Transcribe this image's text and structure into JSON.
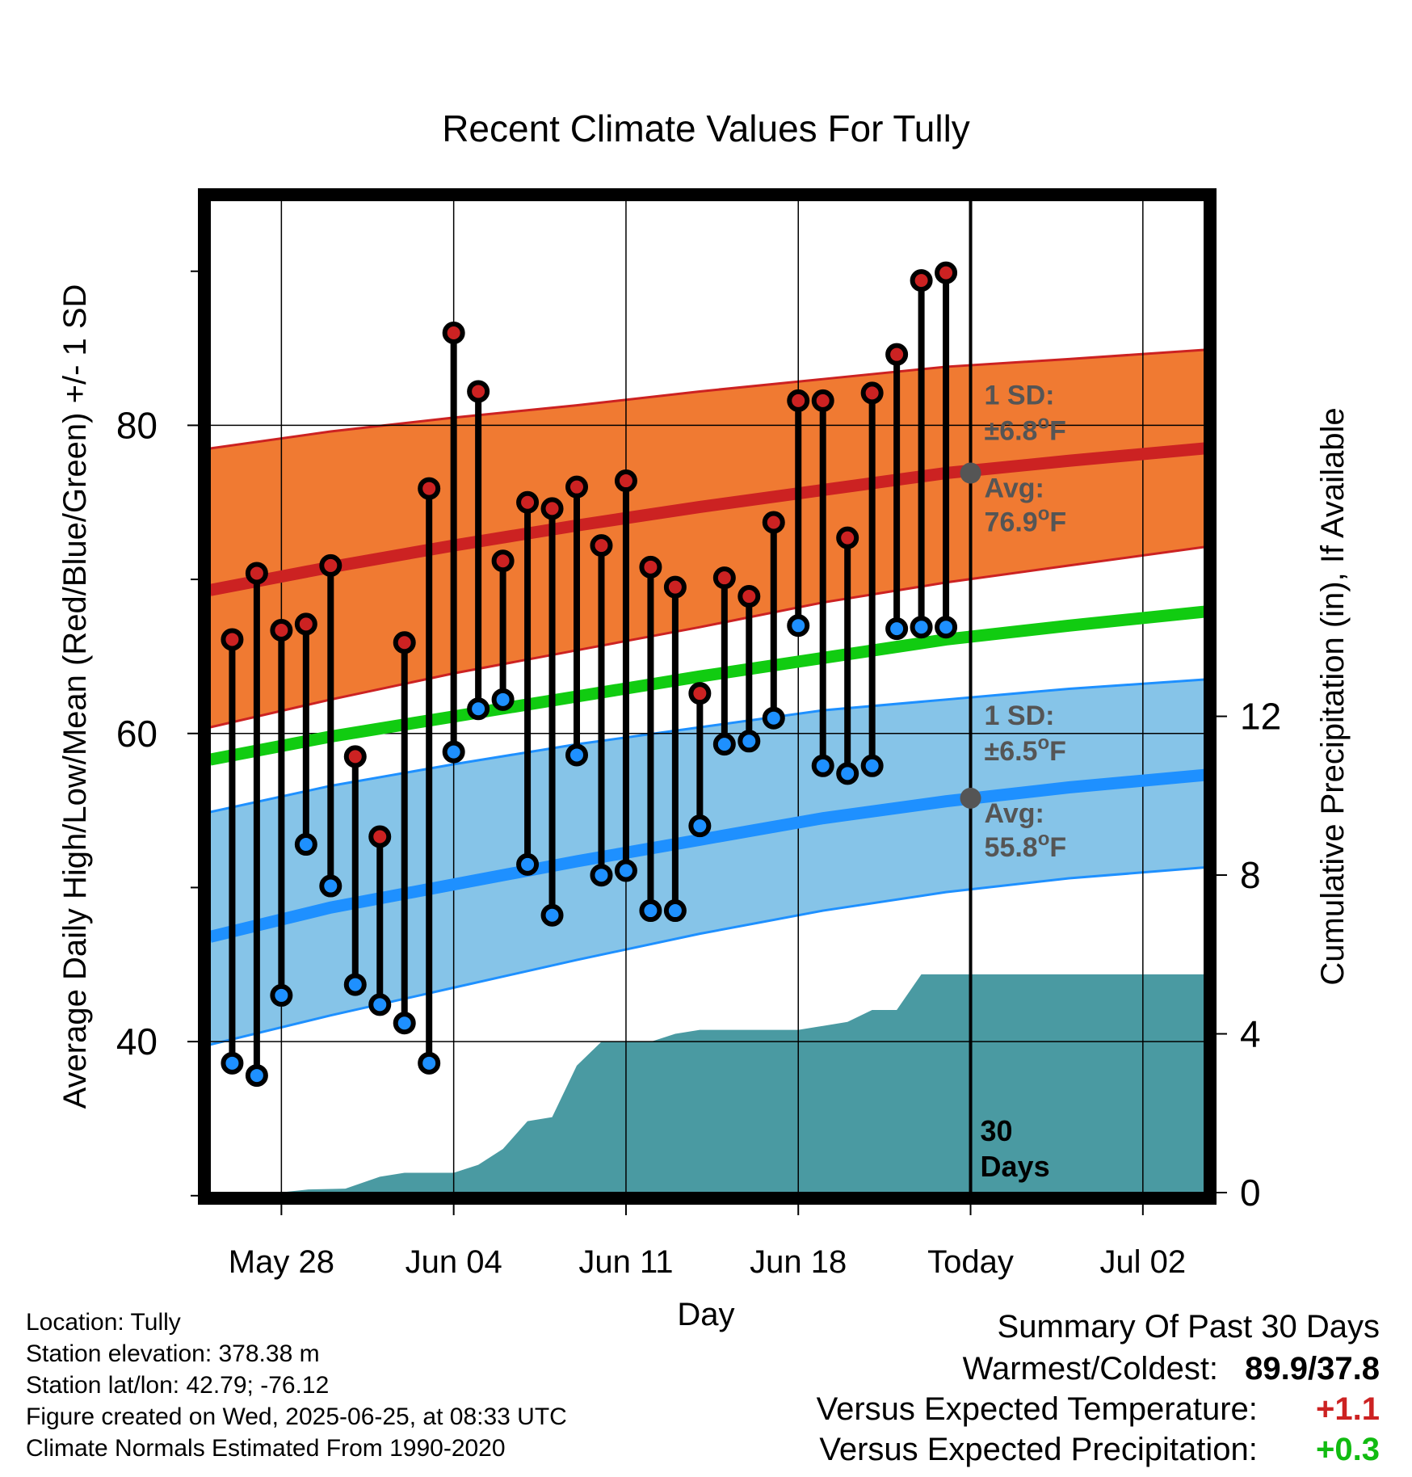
{
  "chart_data": {
    "type": "line",
    "title": "Recent Climate Values For Tully",
    "xlabel": "Day",
    "ylabel": "Average Daily High/Low/Mean (Red/Blue/Green) +/- 1 SD",
    "y2label": "Cumulative Precipitation (in), If Available",
    "x_range_days": [
      -29.9,
      10.5
    ],
    "x_ticks": [
      {
        "day": -27,
        "label": "May 28"
      },
      {
        "day": -20,
        "label": "Jun 04"
      },
      {
        "day": -13,
        "label": "Jun 11"
      },
      {
        "day": -6,
        "label": "Jun 18"
      },
      {
        "day": 1,
        "label": "Today"
      },
      {
        "day": 8,
        "label": "Jul 02"
      }
    ],
    "y_range": [
      30.2,
      94.6
    ],
    "y_ticks": [
      40,
      60,
      80
    ],
    "y_minor_ticks": [
      30,
      50,
      70,
      90
    ],
    "y2_range": [
      0,
      25
    ],
    "y2_ticks": [
      0,
      4,
      8,
      12
    ],
    "grid": true,
    "today_marker": {
      "day": 1,
      "label_line1": "30",
      "label_line2": "Days"
    },
    "normals": {
      "day": [
        -29.9,
        -25,
        -20,
        -15,
        -10,
        -5,
        0,
        5,
        10.5
      ],
      "high_avg": [
        69.3,
        70.8,
        72.2,
        73.5,
        74.7,
        75.8,
        76.9,
        77.7,
        78.5
      ],
      "high_upper": [
        78.5,
        79.6,
        80.5,
        81.3,
        82.2,
        83.0,
        83.8,
        84.3,
        84.9
      ],
      "high_lower": [
        60.4,
        62.2,
        63.9,
        65.4,
        66.9,
        68.5,
        69.8,
        70.9,
        72.1
      ],
      "mean_avg": [
        58.3,
        59.8,
        61.1,
        62.4,
        63.7,
        64.9,
        66.1,
        67.0,
        67.9
      ],
      "low_avg": [
        46.8,
        48.7,
        50.2,
        51.7,
        53.1,
        54.5,
        55.6,
        56.5,
        57.3
      ],
      "low_upper": [
        54.9,
        56.6,
        58.0,
        59.3,
        60.4,
        61.5,
        62.2,
        62.9,
        63.5
      ],
      "low_lower": [
        39.8,
        41.7,
        43.5,
        45.3,
        47.0,
        48.5,
        49.7,
        50.6,
        51.3
      ]
    },
    "daily_days": [
      -29,
      -28,
      -27,
      -26,
      -25,
      -24,
      -23,
      -22,
      -21,
      -20,
      -19,
      -18,
      -17,
      -16,
      -15,
      -14,
      -13,
      -12,
      -11,
      -10,
      -9,
      -8,
      -7,
      -6,
      -5,
      -4,
      -3,
      -2,
      -1,
      0
    ],
    "daily_high": [
      66.1,
      70.4,
      66.7,
      67.1,
      70.9,
      58.5,
      53.3,
      65.9,
      75.9,
      86.0,
      82.2,
      71.2,
      75.0,
      74.6,
      76.0,
      72.2,
      76.4,
      70.8,
      69.5,
      62.6,
      70.1,
      68.9,
      73.7,
      81.6,
      81.6,
      72.7,
      82.1,
      84.6,
      89.4,
      89.9
    ],
    "daily_low": [
      38.6,
      37.8,
      43.0,
      52.8,
      50.1,
      43.7,
      42.4,
      41.2,
      38.6,
      58.8,
      61.6,
      62.2,
      51.5,
      48.2,
      58.6,
      50.8,
      51.1,
      48.5,
      48.5,
      54.0,
      59.3,
      59.5,
      61.0,
      67.0,
      57.9,
      57.4,
      57.9,
      66.8,
      66.9,
      66.9
    ],
    "precip_days": [
      -29.9,
      -27.1,
      -25.9,
      -24.4,
      -23.0,
      -22.0,
      -21.0,
      -20.0,
      -19.0,
      -18.0,
      -17.0,
      -16.0,
      -15.0,
      -14.0,
      -13.0,
      -12.0,
      -11.0,
      -10.0,
      -9.0,
      -8.0,
      -7.0,
      -6.0,
      -5.0,
      -4.0,
      -3.0,
      -2.0,
      -1.0,
      10.5
    ],
    "precip_cum": [
      0,
      0,
      0.08,
      0.1,
      0.4,
      0.5,
      0.5,
      0.5,
      0.7,
      1.1,
      1.8,
      1.9,
      3.2,
      3.8,
      3.8,
      3.8,
      4.0,
      4.1,
      4.1,
      4.1,
      4.1,
      4.1,
      4.2,
      4.3,
      4.6,
      4.6,
      5.5,
      5.5
    ]
  },
  "annotations": {
    "high_sd_line1": "1 SD:",
    "high_sd_line2": "±6.8°F",
    "high_avg_line1": "Avg:",
    "high_avg_line2": "76.9°F",
    "low_sd_line1": "1 SD:",
    "low_sd_line2": "±6.5°F",
    "low_avg_line1": "Avg:",
    "low_avg_line2": "55.8°F"
  },
  "colors": {
    "high_band": "#f07a32",
    "high_line": "#cc2222",
    "mean_line": "#11cc11",
    "low_band": "#86c4e8",
    "low_line": "#1e90ff",
    "precip": "#4a9aa2",
    "high_marker": "#cc2222",
    "low_marker": "#1e90ff",
    "annotation": "#555555",
    "delta_temp": "#cc2222",
    "delta_precip": "#11bb11"
  },
  "footer": {
    "location": "Location: Tully",
    "elevation": "Station elevation: 378.38 m",
    "latlon": "Station lat/lon: 42.79; -76.12",
    "created": "Figure created on Wed, 2025-06-25, at 08:33 UTC",
    "normals": "Climate Normals Estimated From 1990-2020"
  },
  "summary": {
    "title": "Summary Of Past 30 Days",
    "warm_cold_label": "Warmest/Coldest:",
    "warm_cold_value": "89.9/37.8",
    "temp_label": "Versus Expected Temperature:",
    "temp_value": "+1.1",
    "precip_label": "Versus Expected Precipitation:",
    "precip_value": "+0.3"
  }
}
